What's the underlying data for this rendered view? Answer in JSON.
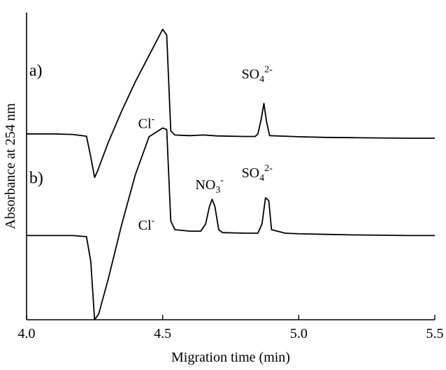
{
  "chart_data": {
    "type": "line",
    "xlabel": "Migration time (min)",
    "ylabel": "Absorbance at 254 nm",
    "xlim": [
      4.0,
      5.5
    ],
    "ylim": [
      0,
      1
    ],
    "x_ticks": [
      "4.0",
      "4.5",
      "5.0",
      "5.5"
    ],
    "grid": false,
    "series": [
      {
        "name": "a)",
        "points": [
          [
            4.0,
            0.64
          ],
          [
            4.1,
            0.64
          ],
          [
            4.17,
            0.638
          ],
          [
            4.22,
            0.632
          ],
          [
            4.236,
            0.56
          ],
          [
            4.25,
            0.49
          ],
          [
            4.26,
            0.51
          ],
          [
            4.3,
            0.61
          ],
          [
            4.35,
            0.72
          ],
          [
            4.4,
            0.82
          ],
          [
            4.45,
            0.91
          ],
          [
            4.5,
            1.0
          ],
          [
            4.515,
            0.98
          ],
          [
            4.53,
            0.65
          ],
          [
            4.545,
            0.636
          ],
          [
            4.6,
            0.634
          ],
          [
            4.65,
            0.636
          ],
          [
            4.7,
            0.633
          ],
          [
            4.8,
            0.631
          ],
          [
            4.84,
            0.631
          ],
          [
            4.85,
            0.64
          ],
          [
            4.862,
            0.69
          ],
          [
            4.872,
            0.745
          ],
          [
            4.882,
            0.68
          ],
          [
            4.893,
            0.634
          ],
          [
            4.95,
            0.632
          ],
          [
            5.0,
            0.63
          ],
          [
            5.1,
            0.628
          ],
          [
            5.2,
            0.627
          ],
          [
            5.3,
            0.626
          ],
          [
            5.4,
            0.625
          ],
          [
            5.5,
            0.625
          ]
        ]
      },
      {
        "name": "b)",
        "points": [
          [
            4.0,
            0.29
          ],
          [
            4.1,
            0.29
          ],
          [
            4.17,
            0.29
          ],
          [
            4.22,
            0.286
          ],
          [
            4.236,
            0.2
          ],
          [
            4.25,
            0.0
          ],
          [
            4.265,
            0.02
          ],
          [
            4.3,
            0.14
          ],
          [
            4.35,
            0.33
          ],
          [
            4.4,
            0.5
          ],
          [
            4.45,
            0.63
          ],
          [
            4.5,
            0.66
          ],
          [
            4.515,
            0.655
          ],
          [
            4.53,
            0.34
          ],
          [
            4.545,
            0.31
          ],
          [
            4.6,
            0.305
          ],
          [
            4.64,
            0.305
          ],
          [
            4.658,
            0.33
          ],
          [
            4.672,
            0.39
          ],
          [
            4.682,
            0.415
          ],
          [
            4.692,
            0.39
          ],
          [
            4.706,
            0.31
          ],
          [
            4.72,
            0.3
          ],
          [
            4.8,
            0.298
          ],
          [
            4.85,
            0.298
          ],
          [
            4.865,
            0.33
          ],
          [
            4.878,
            0.42
          ],
          [
            4.89,
            0.41
          ],
          [
            4.9,
            0.31
          ],
          [
            4.95,
            0.298
          ],
          [
            5.0,
            0.296
          ],
          [
            5.1,
            0.294
          ],
          [
            5.2,
            0.292
          ],
          [
            5.3,
            0.291
          ],
          [
            5.4,
            0.29
          ],
          [
            5.5,
            0.29
          ]
        ]
      }
    ],
    "annotations": [
      {
        "kind": "trace",
        "text": "a)",
        "x": 4.01,
        "y": 0.84
      },
      {
        "kind": "trace",
        "text": "b)",
        "x": 4.01,
        "y": 0.47
      },
      {
        "kind": "ion",
        "base": "Cl",
        "sub": "",
        "sup": "-",
        "x": 4.41,
        "y": 0.66
      },
      {
        "kind": "ion",
        "base": "SO",
        "sub": "4",
        "sup": "2-",
        "x": 4.79,
        "y": 0.83
      },
      {
        "kind": "ion",
        "base": "Cl",
        "sub": "",
        "sup": "-",
        "x": 4.41,
        "y": 0.31
      },
      {
        "kind": "ion",
        "base": "NO",
        "sub": "3",
        "sup": "-",
        "x": 4.62,
        "y": 0.45
      },
      {
        "kind": "ion",
        "base": "SO",
        "sub": "4",
        "sup": "2-",
        "x": 4.79,
        "y": 0.49
      }
    ]
  }
}
